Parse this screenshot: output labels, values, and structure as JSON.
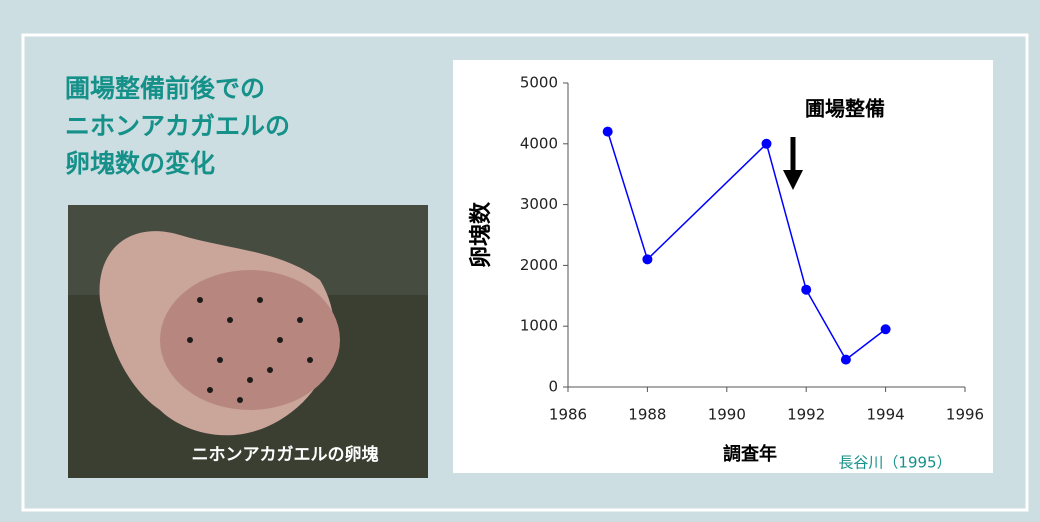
{
  "chart_data": {
    "type": "line",
    "title": [
      "圃場整備前後での",
      "ニホンアカガエルの",
      "卵塊数の変化"
    ],
    "x": [
      1987,
      1988,
      1991,
      1992,
      1993,
      1994
    ],
    "series": [
      {
        "color": "#0000ff",
        "values": [
          4200,
          2100,
          4000,
          1600,
          450,
          950
        ]
      }
    ],
    "xlim": [
      1986,
      1996
    ],
    "xticks": [
      1986,
      1988,
      1990,
      1992,
      1994,
      1996
    ],
    "ylim": [
      0,
      5000
    ],
    "yticks": [
      0,
      1000,
      2000,
      3000,
      4000,
      5000
    ],
    "grid": false,
    "x_label": "調査年",
    "y_label": "卵塊数",
    "annotation": "圃場整備",
    "source": "長谷川（1995）"
  },
  "photo_caption": "ニホンアカガエルの卵塊"
}
